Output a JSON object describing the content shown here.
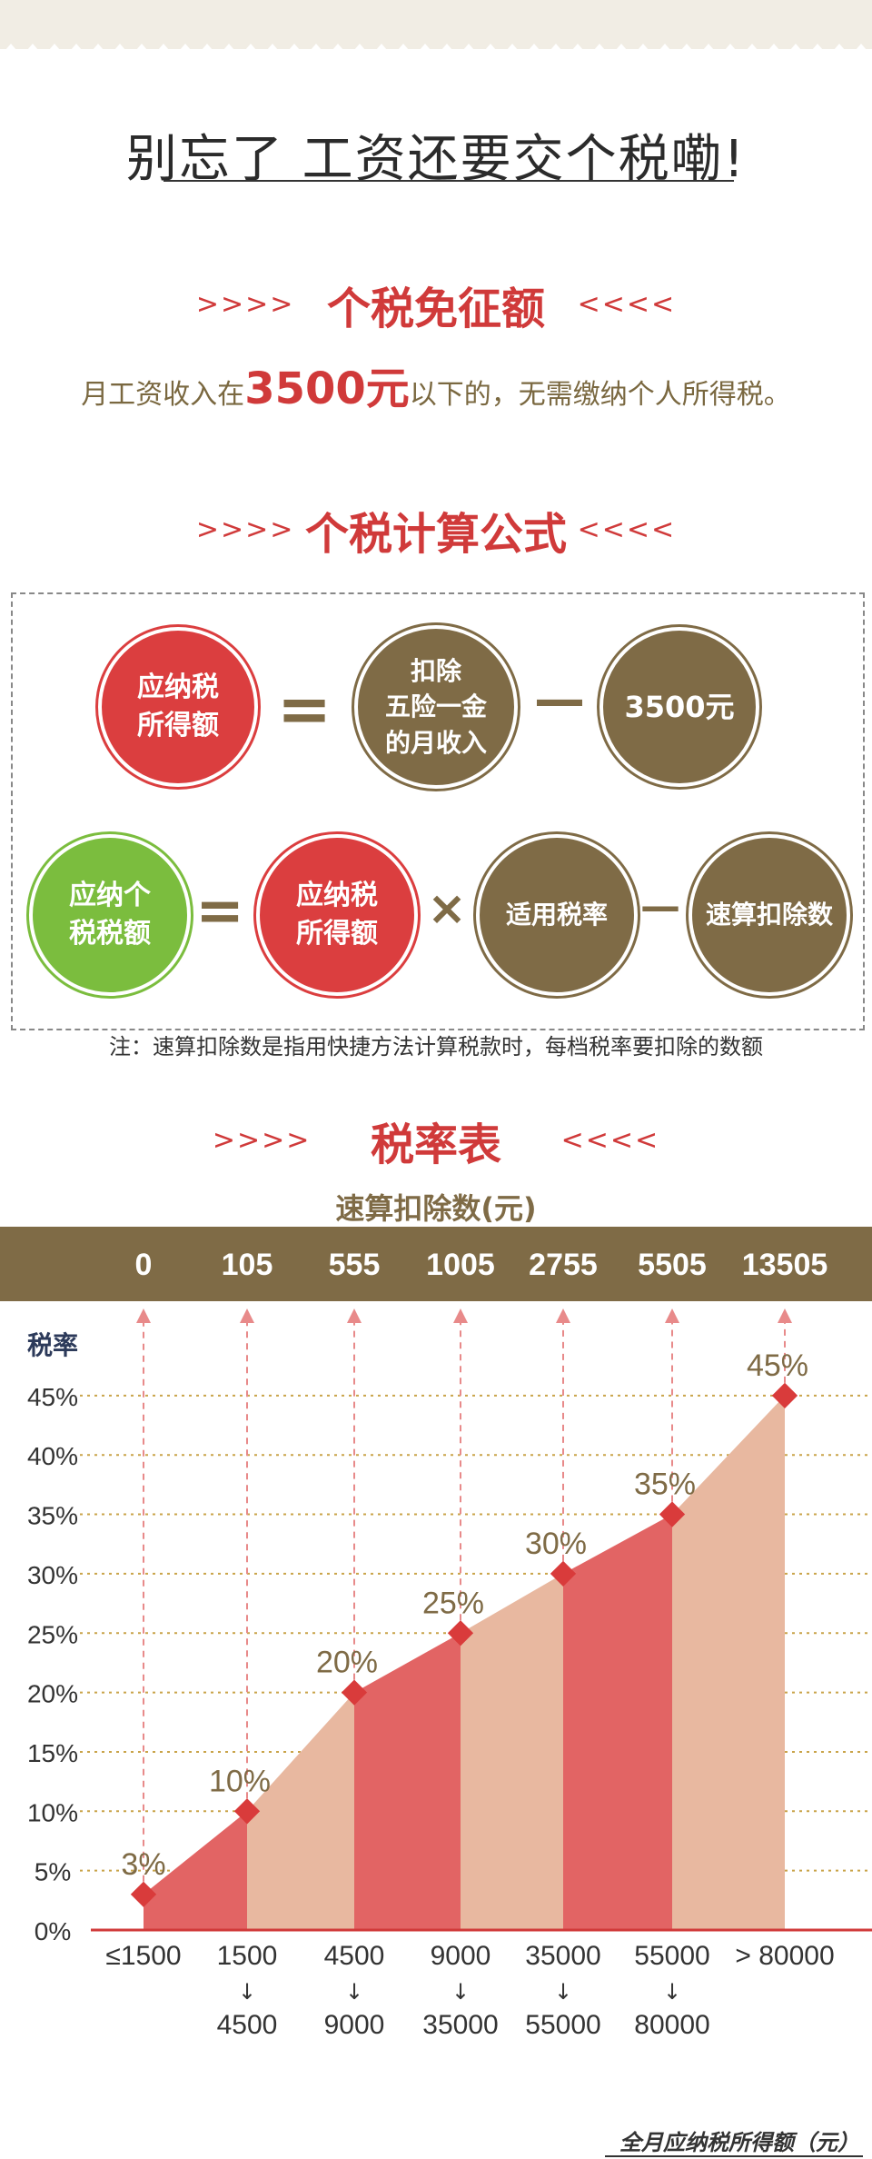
{
  "header": {
    "title": "别忘了 工资还要交个税嘞!"
  },
  "exemption": {
    "heading": "个税免征额",
    "arrows_left": ">>>>",
    "arrows_right": "<<<<",
    "text_before": "月工资收入在",
    "amount": "3500元",
    "text_after": "以下的，无需缴纳个人所得税。"
  },
  "formula": {
    "heading": "个税计算公式",
    "row1": {
      "result": "应纳税\n所得额",
      "operand1": "扣除\n五险一金\n的月收入",
      "operand2": "3500元",
      "op_equals": "=",
      "op_minus": "—"
    },
    "row2": {
      "result": "应纳个\n税税额",
      "operand1": "应纳税\n所得额",
      "operand2": "适用税率",
      "operand3": "速算扣除数",
      "op_equals": "=",
      "op_times": "×",
      "op_minus": "—"
    },
    "note": "注：速算扣除数是指用快捷方法计算税款时，每档税率要扣除的数额"
  },
  "rate_table": {
    "heading": "税率表",
    "deduction_title": "速算扣除数(元)",
    "y_title": "税率",
    "x_title": "全月应纳税所得额（元）"
  },
  "colors": {
    "red": "#d03a3a",
    "brown": "#7f6b46",
    "green": "#7bbd3e",
    "bar_red": "#e26464",
    "bar_light": "#e8b8a0"
  },
  "chart_data": {
    "type": "area",
    "title": "税率表",
    "ylabel": "税率",
    "xlabel": "全月应纳税所得额（元）",
    "ylim": [
      0,
      45
    ],
    "y_ticks": [
      "0%",
      "5%",
      "10%",
      "15%",
      "20%",
      "25%",
      "30%",
      "35%",
      "40%",
      "45%"
    ],
    "grid": true,
    "categories": [
      {
        "top": "≤1500",
        "bottom": ""
      },
      {
        "top": "1500",
        "bottom": "4500"
      },
      {
        "top": "4500",
        "bottom": "9000"
      },
      {
        "top": "9000",
        "bottom": "35000"
      },
      {
        "top": "35000",
        "bottom": "55000"
      },
      {
        "top": "55000",
        "bottom": "80000"
      },
      {
        "top": "> 80000",
        "bottom": ""
      }
    ],
    "rates": [
      3,
      10,
      20,
      25,
      30,
      35,
      45
    ],
    "rate_labels": [
      "3%",
      "10%",
      "20%",
      "25%",
      "30%",
      "35%",
      "45%"
    ],
    "deductions": [
      "0",
      "105",
      "555",
      "1005",
      "2755",
      "5505",
      "13505"
    ]
  }
}
